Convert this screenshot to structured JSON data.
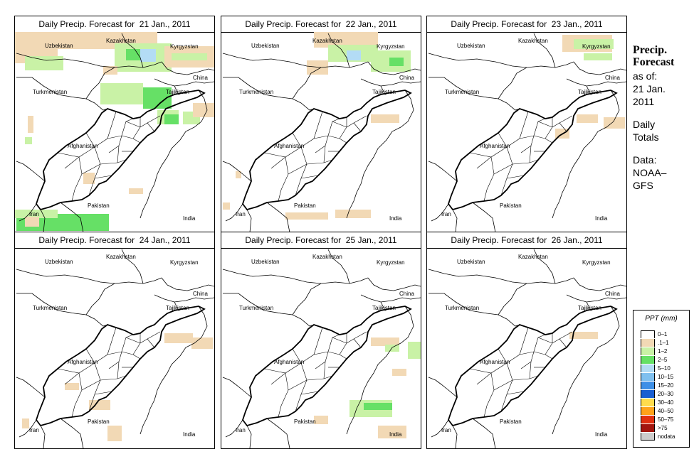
{
  "panels": [
    {
      "title": "Daily Precip. Forecast for  21 Jan., 2011"
    },
    {
      "title": "Daily Precip. Forecast for  22 Jan., 2011"
    },
    {
      "title": "Daily Precip. Forecast for  23 Jan., 2011"
    },
    {
      "title": "Daily Precip. Forecast for  24 Jan., 2011"
    },
    {
      "title": "Daily Precip. Forecast for  25 Jan., 2011"
    },
    {
      "title": "Daily Precip. Forecast for  26 Jan., 2011"
    }
  ],
  "countries": {
    "kazakhstan": "Kazakhstan",
    "uzbekistan": "Uzbekistan",
    "kyrgyzstan": "Kyrgyzstan",
    "china": "China",
    "turkmenistan": "Turkmenistan",
    "tajikistan": "Tajikistan",
    "afghanistan": "Afghanistan",
    "pakistan": "Pakistan",
    "iran": "Iran",
    "india": "India"
  },
  "side": {
    "title_line1": "Precip.",
    "title_line2": "Forecast",
    "asof_line1": "as of:",
    "asof_line2": "21 Jan.",
    "asof_line3": "2011",
    "totals_line1": "Daily",
    "totals_line2": "Totals",
    "data_line1": "Data:",
    "data_line2": "NOAA–",
    "data_line3": "GFS"
  },
  "legend": {
    "title": "PPT (mm)",
    "items": [
      {
        "label": "0–1",
        "color": "#ffffff"
      },
      {
        "label": ".1–1",
        "color": "#f2d9b5"
      },
      {
        "label": "1–2",
        "color": "#c9f2a6"
      },
      {
        "label": "2–5",
        "color": "#66e066"
      },
      {
        "label": "5–10",
        "color": "#b3dcf5"
      },
      {
        "label": "10–15",
        "color": "#7fc0ef"
      },
      {
        "label": "15–20",
        "color": "#3d8fe6"
      },
      {
        "label": "20–30",
        "color": "#1a5fd1"
      },
      {
        "label": "30–40",
        "color": "#ffdc4d"
      },
      {
        "label": "40–50",
        "color": "#ffa21a"
      },
      {
        "label": "50–75",
        "color": "#e0300f"
      },
      {
        "label": ">75",
        "color": "#a3160f"
      },
      {
        "label": "nodata",
        "color": "#cccccc"
      }
    ]
  },
  "colors": {
    "border": "#000000",
    "tan": "#f2d9b5",
    "light_green": "#c9f2a6",
    "green": "#66e066",
    "light_blue": "#b3dcf5",
    "blue": "#3d8fe6"
  }
}
